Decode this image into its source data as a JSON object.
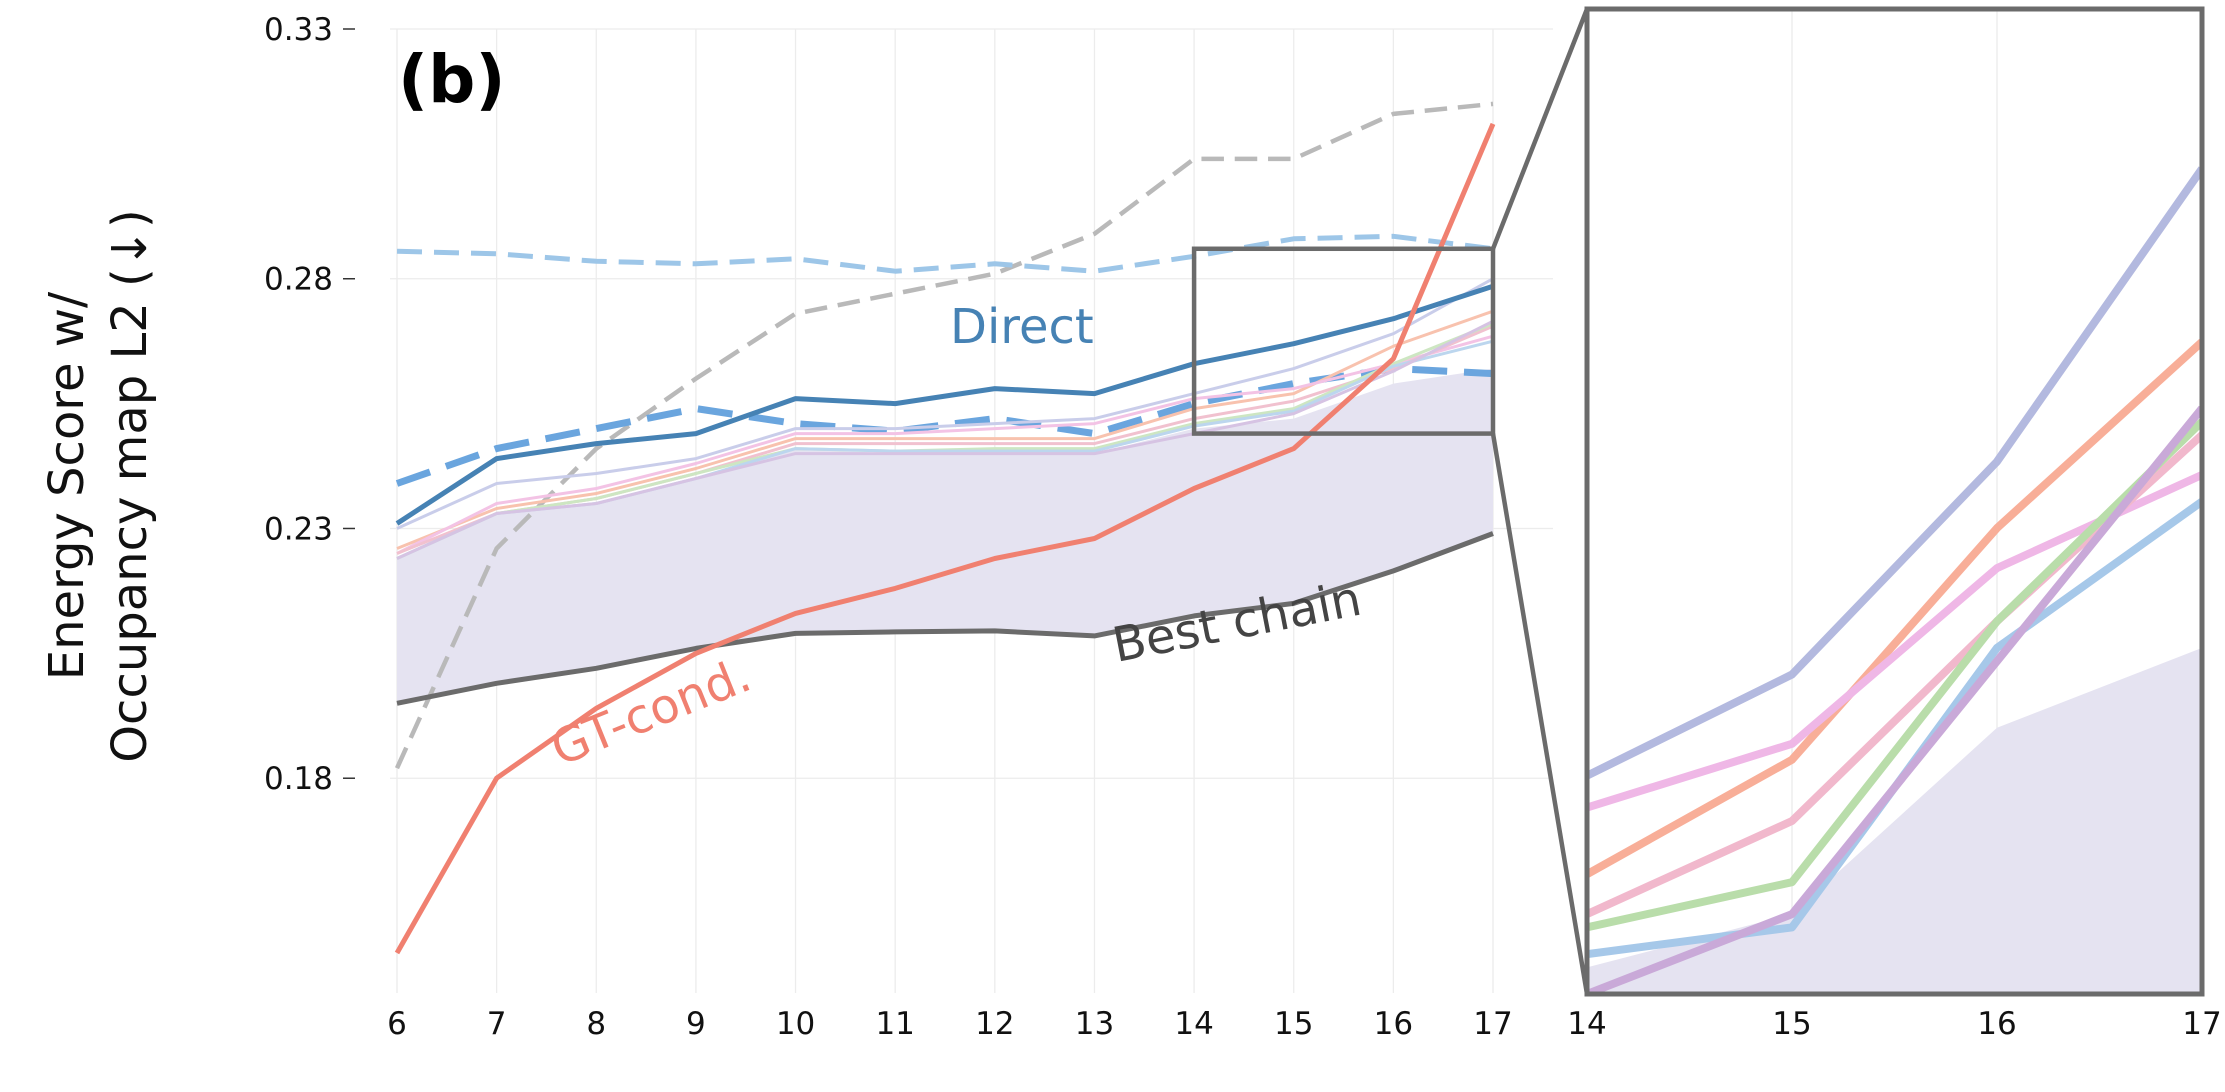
{
  "chart_data": {
    "type": "line",
    "panel_label": "(b)",
    "ylabel_lines": [
      "Energy Score w/",
      "Occupancy map L2 (↓)"
    ],
    "yticks": [
      0.18,
      0.23,
      0.28,
      0.33
    ],
    "ylim": [
      0.137,
      0.33
    ],
    "x": [
      6,
      7,
      8,
      9,
      10,
      11,
      12,
      13,
      14,
      15,
      16,
      17
    ],
    "xlim": [
      6,
      17
    ],
    "grid": true,
    "annotations": [
      {
        "text": "Direct",
        "color": "#4682b4"
      },
      {
        "text": "GT-cond.",
        "color": "#f08070"
      },
      {
        "text": "Best chain",
        "color": "#444444"
      }
    ],
    "shaded_band": {
      "color": "#e5e3f1",
      "upper": [
        0.224,
        0.233,
        0.235,
        0.24,
        0.246,
        0.245,
        0.245,
        0.245,
        0.25,
        0.252,
        0.259,
        0.262
      ],
      "lower": [
        0.195,
        0.199,
        0.202,
        0.206,
        0.209,
        0.2093,
        0.2095,
        0.2085,
        0.2125,
        0.215,
        0.2215,
        0.229
      ]
    },
    "series": [
      {
        "key": "dashed_grey",
        "color": "#b9b9b9",
        "style": "dashed",
        "values": [
          0.182,
          0.226,
          0.246,
          0.26,
          0.273,
          0.277,
          0.281,
          0.289,
          0.304,
          0.304,
          0.313,
          0.315
        ]
      },
      {
        "key": "dashed_lightblue",
        "color": "#9dc6e8",
        "style": "dashed",
        "values": [
          0.2855,
          0.285,
          0.2835,
          0.283,
          0.284,
          0.2815,
          0.283,
          0.2815,
          0.2845,
          0.288,
          0.2885,
          0.286
        ]
      },
      {
        "key": "direct_dashed",
        "color": "#6aa5de",
        "style": "dashed",
        "values": [
          0.239,
          0.246,
          0.25,
          0.254,
          0.251,
          0.2495,
          0.252,
          0.249,
          0.255,
          0.259,
          0.262,
          0.261
        ]
      },
      {
        "key": "faint_lavender",
        "color": "#c9cdea",
        "style": "solid",
        "values": [
          0.23,
          0.239,
          0.241,
          0.244,
          0.25,
          0.25,
          0.251,
          0.252,
          0.257,
          0.262,
          0.269,
          0.28
        ]
      },
      {
        "key": "faint_orange",
        "color": "#f8c2ae",
        "style": "solid",
        "values": [
          0.226,
          0.234,
          0.237,
          0.242,
          0.248,
          0.248,
          0.248,
          0.248,
          0.254,
          0.257,
          0.2665,
          0.2735
        ]
      },
      {
        "key": "faint_pink",
        "color": "#f3c3e5",
        "style": "solid",
        "values": [
          0.225,
          0.235,
          0.238,
          0.243,
          0.249,
          0.249,
          0.25,
          0.251,
          0.256,
          0.258,
          0.263,
          0.2685
        ]
      },
      {
        "key": "faint_rose",
        "color": "#f1c1cf",
        "style": "solid",
        "values": [
          0.225,
          0.233,
          0.236,
          0.241,
          0.247,
          0.247,
          0.247,
          0.247,
          0.252,
          0.2555,
          0.262,
          0.2705
        ]
      },
      {
        "key": "faint_green",
        "color": "#cde6c2",
        "style": "solid",
        "values": [
          0.224,
          0.233,
          0.236,
          0.241,
          0.246,
          0.2455,
          0.246,
          0.246,
          0.251,
          0.254,
          0.263,
          0.271
        ]
      },
      {
        "key": "faint_blue",
        "color": "#bcd6ee",
        "style": "solid",
        "values": [
          0.224,
          0.233,
          0.235,
          0.24,
          0.246,
          0.2455,
          0.2455,
          0.2455,
          0.2505,
          0.2535,
          0.2625,
          0.2675
        ]
      },
      {
        "key": "faint_purple",
        "color": "#d6c3e3",
        "style": "solid",
        "values": [
          0.224,
          0.233,
          0.235,
          0.24,
          0.245,
          0.245,
          0.245,
          0.245,
          0.249,
          0.253,
          0.2615,
          0.2715
        ]
      },
      {
        "key": "direct_solid",
        "color": "#4682b4",
        "style": "solid",
        "values": [
          0.231,
          0.244,
          0.247,
          0.249,
          0.256,
          0.255,
          0.258,
          0.257,
          0.263,
          0.267,
          0.272,
          0.2785
        ]
      },
      {
        "key": "best_chain",
        "color": "#6b6b6b",
        "style": "solid",
        "values": [
          0.195,
          0.199,
          0.202,
          0.206,
          0.209,
          0.2093,
          0.2095,
          0.2085,
          0.2125,
          0.215,
          0.2215,
          0.229
        ]
      },
      {
        "key": "gt_cond",
        "color": "#f08070",
        "style": "solid",
        "values": [
          0.145,
          0.18,
          0.194,
          0.205,
          0.213,
          0.218,
          0.224,
          0.228,
          0.238,
          0.246,
          0.264,
          0.311
        ]
      }
    ],
    "inset": {
      "x": [
        14,
        15,
        16,
        17
      ],
      "xlim": [
        14,
        17
      ],
      "ylim": [
        0.249,
        0.286
      ],
      "band_upper": [
        0.25,
        0.252,
        0.259,
        0.262
      ],
      "series": [
        {
          "key": "zoom_lavender",
          "color": "#b3b9df",
          "values": [
            0.2572,
            0.261,
            0.269,
            0.28
          ]
        },
        {
          "key": "zoom_orange",
          "color": "#f8ae98",
          "values": [
            0.2535,
            0.2578,
            0.2665,
            0.2735
          ]
        },
        {
          "key": "zoom_pink",
          "color": "#efb7e6",
          "values": [
            0.256,
            0.2584,
            0.265,
            0.2685
          ]
        },
        {
          "key": "zoom_rose",
          "color": "#f1b8cc",
          "values": [
            0.252,
            0.2555,
            0.263,
            0.27
          ]
        },
        {
          "key": "zoom_green",
          "color": "#b9ddaa",
          "values": [
            0.2515,
            0.2532,
            0.263,
            0.2705
          ]
        },
        {
          "key": "zoom_blue",
          "color": "#a6c8e9",
          "values": [
            0.2505,
            0.2515,
            0.262,
            0.2675
          ]
        },
        {
          "key": "zoom_purple",
          "color": "#c9a9d8",
          "values": [
            0.249,
            0.252,
            0.2615,
            0.271
          ]
        }
      ]
    }
  }
}
